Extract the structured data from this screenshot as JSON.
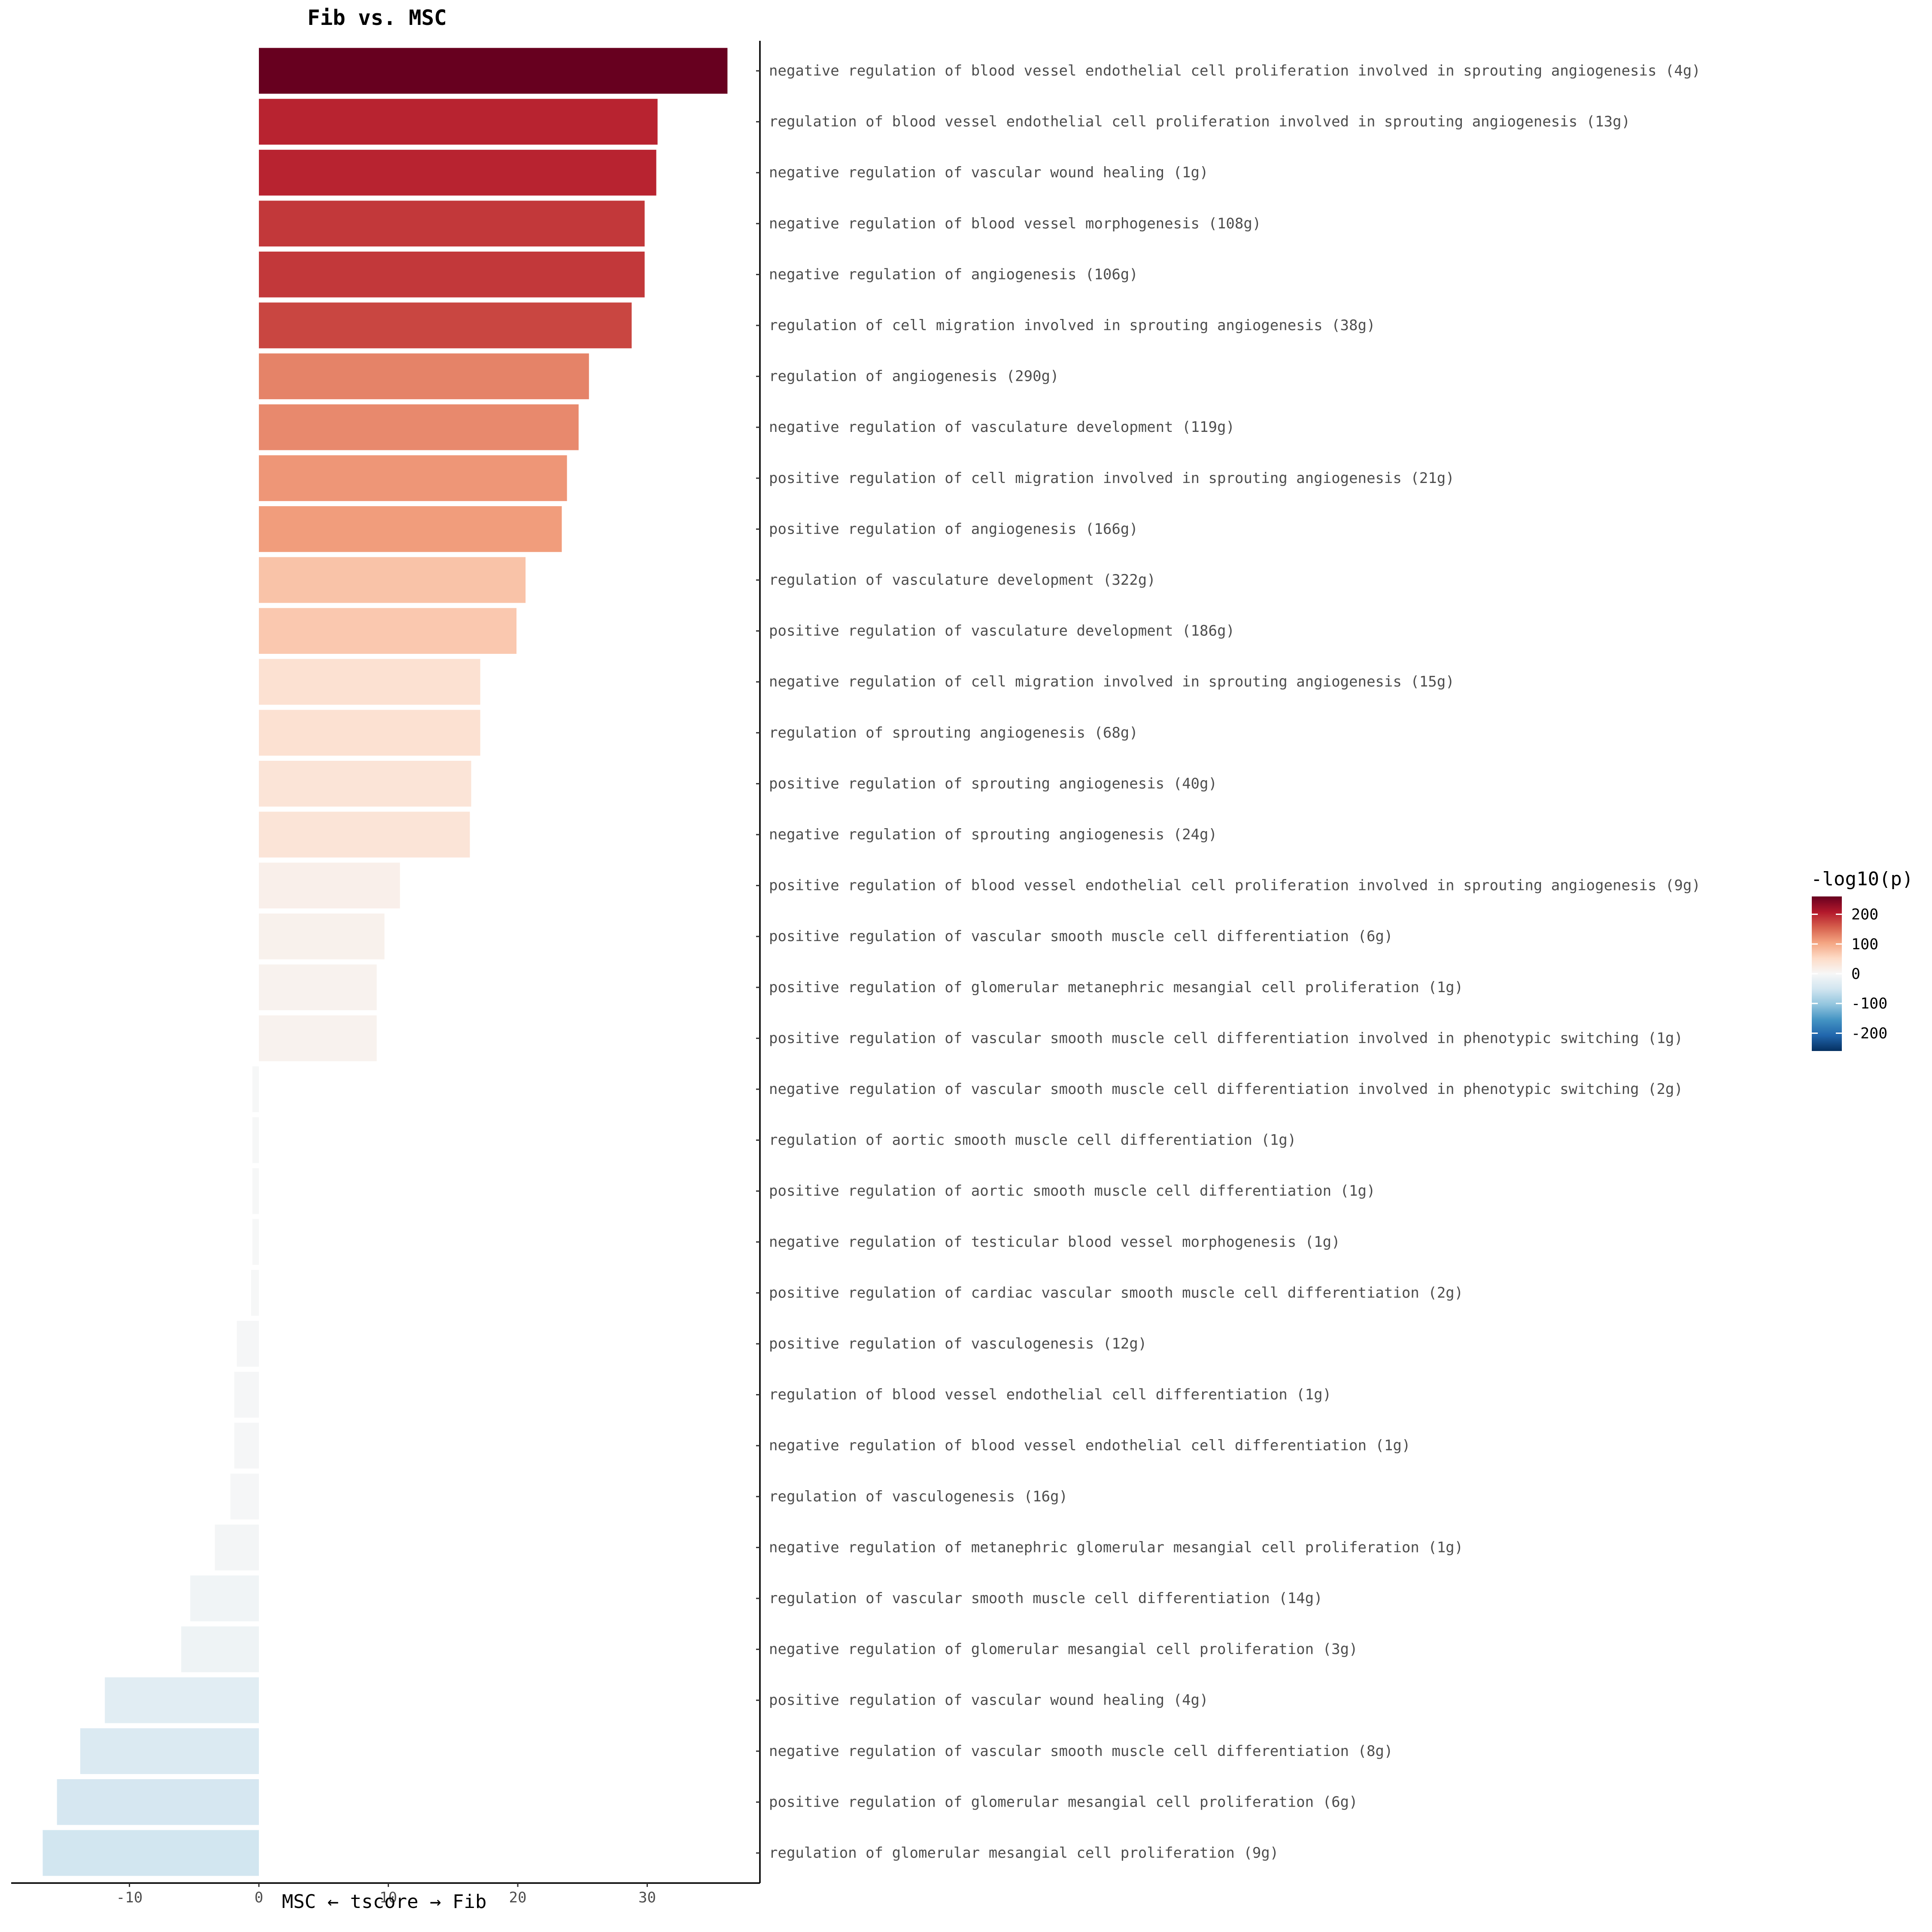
{
  "chart_data": {
    "type": "bar",
    "orientation": "horizontal",
    "title": "Fib vs. MSC",
    "xlabel": "MSC ← tscore → Fib",
    "xlim": [
      -19,
      39
    ],
    "xticks": [
      -10,
      0,
      10,
      20,
      30
    ],
    "legend": {
      "title": "-log10(p)",
      "placement": "right",
      "ticks": [
        200,
        100,
        0,
        -100,
        -200
      ],
      "range": [
        -260,
        260
      ]
    },
    "color_scale": [
      "#053061",
      "#2166ac",
      "#4393c3",
      "#92c5de",
      "#d1e5f0",
      "#f7f7f7",
      "#fddbc7",
      "#f4a582",
      "#d6604d",
      "#b2182b",
      "#67001f"
    ],
    "categories": [
      "negative regulation of blood vessel endothelial cell proliferation involved in sprouting angiogenesis (4g)",
      "regulation of blood vessel endothelial cell proliferation involved in sprouting angiogenesis (13g)",
      "negative regulation of vascular wound healing (1g)",
      "negative regulation of blood vessel morphogenesis (108g)",
      "negative regulation of angiogenesis (106g)",
      "regulation of cell migration involved in sprouting angiogenesis (38g)",
      "regulation of angiogenesis (290g)",
      "negative regulation of vasculature development (119g)",
      "positive regulation of cell migration involved in sprouting angiogenesis (21g)",
      "positive regulation of angiogenesis (166g)",
      "regulation of vasculature development (322g)",
      "positive regulation of vasculature development (186g)",
      "negative regulation of cell migration involved in sprouting angiogenesis (15g)",
      "regulation of sprouting angiogenesis (68g)",
      "positive regulation of sprouting angiogenesis (40g)",
      "negative regulation of sprouting angiogenesis (24g)",
      "positive regulation of blood vessel endothelial cell proliferation involved in sprouting angiogenesis (9g)",
      "positive regulation of vascular smooth muscle cell differentiation (6g)",
      "positive regulation of glomerular metanephric mesangial cell proliferation (1g)",
      "positive regulation of vascular smooth muscle cell differentiation involved in phenotypic switching (1g)",
      "negative regulation of vascular smooth muscle cell differentiation involved in phenotypic switching (2g)",
      "regulation of aortic smooth muscle cell differentiation (1g)",
      "positive regulation of aortic smooth muscle cell differentiation (1g)",
      "negative regulation of testicular blood vessel morphogenesis (1g)",
      "positive regulation of cardiac vascular smooth muscle cell differentiation (2g)",
      "positive regulation of vasculogenesis (12g)",
      "regulation of blood vessel endothelial cell differentiation (1g)",
      "negative regulation of blood vessel endothelial cell differentiation (1g)",
      "regulation of vasculogenesis (16g)",
      "negative regulation of metanephric glomerular mesangial cell proliferation (1g)",
      "regulation of vascular smooth muscle cell differentiation (14g)",
      "negative regulation of glomerular mesangial cell proliferation (3g)",
      "positive regulation of vascular wound healing (4g)",
      "negative regulation of vascular smooth muscle cell differentiation (8g)",
      "positive regulation of glomerular mesangial cell proliferation (6g)",
      "regulation of glomerular mesangial cell proliferation (9g)"
    ],
    "values": [
      36.2,
      30.8,
      30.7,
      29.8,
      29.8,
      28.8,
      25.5,
      24.7,
      23.8,
      23.4,
      20.6,
      19.9,
      17.1,
      17.1,
      16.4,
      16.3,
      10.9,
      9.7,
      9.1,
      9.1,
      -0.5,
      -0.5,
      -0.5,
      -0.5,
      -0.6,
      -1.7,
      -1.9,
      -1.9,
      -2.2,
      -3.4,
      -5.3,
      -6.0,
      -11.9,
      -13.8,
      -15.6,
      -16.7
    ],
    "neg_log10_p": [
      260,
      200,
      200,
      185,
      185,
      175,
      130,
      125,
      115,
      110,
      75,
      70,
      40,
      40,
      35,
      35,
      14,
      12,
      10,
      10,
      -1,
      -1,
      -1,
      -1,
      -1,
      -3,
      -3,
      -3,
      -3,
      -5,
      -10,
      -12,
      -30,
      -38,
      -45,
      -50
    ]
  }
}
